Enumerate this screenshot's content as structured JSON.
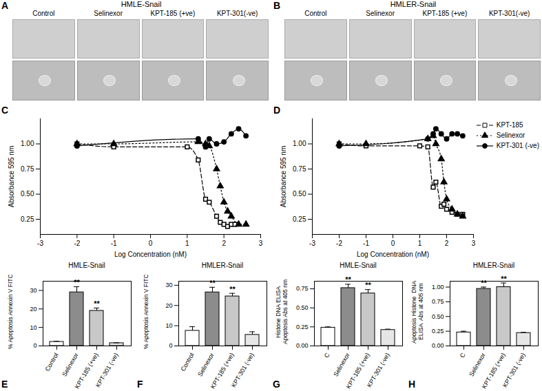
{
  "chart_data": [
    {
      "panel": "A",
      "type": "image",
      "title": "HMLE-Snail",
      "categories": [
        "Control",
        "Selinexor",
        "KPT-185 (+ve)",
        "KPT-301(-ve)"
      ]
    },
    {
      "panel": "B",
      "type": "image",
      "title": "HMLER-Snail",
      "categories": [
        "Control",
        "Selinexor",
        "KPT-185 (+ve)",
        "KPT-301(-ve)"
      ]
    },
    {
      "panel": "C",
      "type": "line",
      "xlabel": "Log Concentration (nM)",
      "ylabel": "Absorbance 595 nm",
      "xlim": [
        -3,
        3
      ],
      "xticks": [
        -3,
        -2,
        -1,
        0,
        1,
        2,
        3
      ],
      "ylim": [
        0.1,
        1.25
      ],
      "yticks": [
        0.25,
        {
          "value": 0.5,
          "label": "0.50"
        },
        0.75,
        {
          "value": 1,
          "label": "1.00"
        }
      ],
      "series": [
        {
          "color": "#000000",
          "marker": "square",
          "line_style": "dashed",
          "x": [
            -2,
            -1,
            1,
            1.3,
            1.5,
            1.6,
            1.8,
            1.9,
            2,
            2.1,
            2.2,
            2.3
          ],
          "values": [
            1.0,
            0.97,
            0.97,
            0.84,
            0.45,
            0.42,
            0.28,
            0.22,
            0.2,
            0.18,
            0.2,
            0.2
          ]
        },
        {
          "color": "#000000",
          "marker": "triangle",
          "line_style": "dotted",
          "x": [
            -2,
            -1,
            1.3,
            1.5,
            1.6,
            1.8,
            1.9,
            2,
            2.1,
            2.2,
            2.4,
            2.6
          ],
          "values": [
            1.0,
            1.0,
            1.02,
            1.0,
            0.98,
            0.75,
            0.58,
            0.42,
            0.33,
            0.28,
            0.2,
            0.2
          ]
        },
        {
          "color": "#000000",
          "marker": "circle",
          "line_style": "solid",
          "x": [
            -2,
            1.3,
            1.5,
            1.6,
            1.8,
            2,
            2.2,
            2.4,
            2.6
          ],
          "values": [
            0.98,
            1.05,
            0.97,
            1.05,
            1.0,
            1.02,
            1.1,
            1.15,
            1.08
          ]
        }
      ]
    },
    {
      "panel": "D",
      "type": "line",
      "xlabel": "Log Concentration (nM)",
      "ylabel": "Absorbance 595 nm",
      "legend": "top-right",
      "xlim": [
        -3,
        3
      ],
      "xticks": [
        -3,
        -2,
        -1,
        0,
        1,
        2,
        3
      ],
      "ylim": [
        0.1,
        1.25
      ],
      "yticks": [
        0.25,
        {
          "value": 0.5,
          "label": "0.50"
        },
        0.75,
        {
          "value": 1,
          "label": "1.00"
        }
      ],
      "series": [
        {
          "name": "KPT-185",
          "color": "#000000",
          "marker": "square",
          "line_style": "dashed",
          "x": [
            -2,
            -1,
            1,
            1.3,
            1.5,
            1.6,
            1.8,
            1.9,
            2,
            2.2,
            2.4,
            2.6
          ],
          "values": [
            1.0,
            0.98,
            0.98,
            0.97,
            0.57,
            0.62,
            0.38,
            0.4,
            0.35,
            0.32,
            0.3,
            0.3
          ]
        },
        {
          "name": "Selinexor",
          "color": "#000000",
          "marker": "triangle",
          "line_style": "dotted",
          "x": [
            -2,
            -1,
            1.3,
            1.5,
            1.6,
            1.8,
            1.9,
            2,
            2.2,
            2.4,
            2.6
          ],
          "values": [
            1.0,
            1.0,
            1.05,
            1.08,
            1.0,
            0.85,
            0.62,
            0.45,
            0.35,
            0.3,
            0.28
          ]
        },
        {
          "name": "KPT-301 (-ve)",
          "color": "#000000",
          "marker": "circle",
          "line_style": "solid",
          "x": [
            -2,
            1.3,
            1.5,
            1.6,
            1.8,
            2,
            2.2,
            2.4,
            2.6
          ],
          "values": [
            0.98,
            1.05,
            1.1,
            1.15,
            1.1,
            1.05,
            1.1,
            1.1,
            1.08
          ]
        }
      ]
    },
    {
      "panel": "E",
      "type": "bar",
      "title": "HMLE-Snail",
      "ylabel": "% Apoptosis Annexin V FITC",
      "categories": [
        "Control",
        "Selinexor",
        "KPT-185 (+ve)",
        "KPT-301 (-ve)"
      ],
      "values": [
        2.2,
        29,
        19,
        1.5
      ],
      "errors": [
        0.3,
        3,
        1.5,
        0.2
      ],
      "colors": [
        "#ffffff",
        "#8c8c8c",
        "#c8c8c8",
        "#e6e6e6"
      ],
      "ylim": [
        0,
        35
      ],
      "yticks": [
        0,
        10,
        20,
        30
      ],
      "annotations": [
        {
          "category": "Selinexor",
          "text": "**"
        },
        {
          "category": "KPT-185 (+ve)",
          "text": "**"
        }
      ]
    },
    {
      "panel": "F",
      "type": "bar",
      "title": "HMLER-Snail",
      "ylabel": "% Apoptosis Annexin V FITC",
      "categories": [
        "Control",
        "Selinexor",
        "KPT-185 (+ve)",
        "KPT-301 (-ve)"
      ],
      "values": [
        7.5,
        26.5,
        24.5,
        5.5
      ],
      "errors": [
        2,
        2.5,
        1.5,
        1.5
      ],
      "colors": [
        "#ffffff",
        "#8c8c8c",
        "#c8c8c8",
        "#e6e6e6"
      ],
      "ylim": [
        0,
        32
      ],
      "yticks": [
        0,
        10,
        20,
        30
      ],
      "annotations": [
        {
          "category": "Selinexor",
          "text": "**"
        },
        {
          "category": "KPT-185 (+ve)",
          "text": "**"
        }
      ]
    },
    {
      "panel": "G",
      "type": "bar",
      "title": "HMLE-Snail",
      "ylabel": "Histone DNA ELISA\nApoptosis Abs at 405 nm",
      "categories": [
        "C",
        "Selinexor",
        "KPT-185 (+ve)",
        "KPT-301 (-ve)"
      ],
      "values": [
        0.24,
        0.76,
        0.69,
        0.21
      ],
      "errors": [
        0.01,
        0.05,
        0.05,
        0.01
      ],
      "colors": [
        "#ffffff",
        "#8c8c8c",
        "#c8c8c8",
        "#e6e6e6"
      ],
      "ylim": [
        0,
        0.85
      ],
      "yticks": [
        {
          "value": 0,
          "label": "0.00"
        },
        0.25,
        {
          "value": 0.5,
          "label": "0.50"
        },
        0.75
      ],
      "annotations": [
        {
          "category": "Selinexor",
          "text": "**"
        },
        {
          "category": "KPT-185 (+ve)",
          "text": "**"
        }
      ]
    },
    {
      "panel": "H",
      "type": "bar",
      "title": "HMLER-Snail",
      "ylabel": "Apoptosis Histone  DNA\nELISA  Abs at 405 nm",
      "categories": [
        "C",
        "Selinexor",
        "KPT-185 (+ve)",
        "KPT-301 (-ve)"
      ],
      "values": [
        0.23,
        0.97,
        1.0,
        0.22
      ],
      "errors": [
        0.02,
        0.03,
        0.07,
        0.01
      ],
      "colors": [
        "#ffffff",
        "#8c8c8c",
        "#c8c8c8",
        "#e6e6e6"
      ],
      "ylim": [
        0,
        1.1
      ],
      "yticks": [
        {
          "value": 0,
          "label": "0.00"
        },
        0.25,
        {
          "value": 0.5,
          "label": "0.50"
        },
        0.75,
        {
          "value": 1,
          "label": "1.00"
        }
      ],
      "annotations": [
        {
          "category": "Selinexor",
          "text": "**"
        },
        {
          "category": "KPT-185 (+ve)",
          "text": "**"
        }
      ]
    }
  ]
}
